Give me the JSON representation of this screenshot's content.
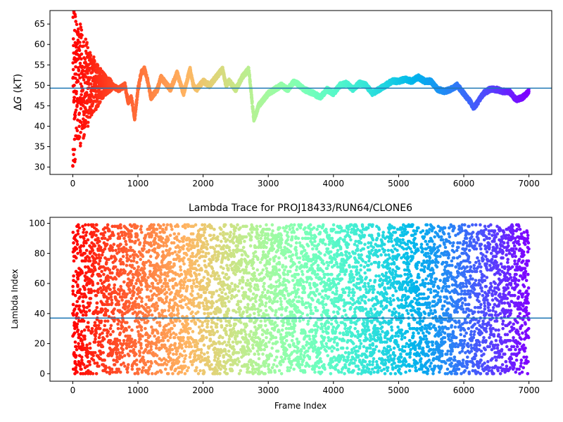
{
  "chart_data": [
    {
      "type": "scatter",
      "title": "",
      "xlabel": "",
      "ylabel_prefix": "Δ",
      "ylabel_italic": "G",
      "ylabel_suffix": " (kT)",
      "xlim": [
        -350,
        7350
      ],
      "ylim": [
        28.2,
        68.3
      ],
      "xticks": [
        0,
        1000,
        2000,
        3000,
        4000,
        5000,
        6000,
        7000
      ],
      "yticks": [
        30,
        35,
        40,
        45,
        50,
        55,
        60,
        65
      ],
      "xtick_labels": [
        "0",
        "1000",
        "2000",
        "3000",
        "4000",
        "5000",
        "6000",
        "7000"
      ],
      "ytick_labels": [
        "30",
        "35",
        "40",
        "45",
        "50",
        "55",
        "60",
        "65"
      ],
      "hline": 49.3,
      "hline_color": "#1f77b4",
      "colormap": "rainbow (red at frame 0 to violet at frame 7000)",
      "n_points": 7000,
      "trace_anchors": {
        "x": [
          0,
          60,
          100,
          150,
          200,
          250,
          300,
          350,
          400,
          450,
          500,
          600,
          700,
          800,
          850,
          900,
          950,
          1000,
          1050,
          1100,
          1150,
          1200,
          1250,
          1300,
          1350,
          1400,
          1450,
          1500,
          1600,
          1700,
          1750,
          1800,
          1850,
          1900,
          2000,
          2100,
          2200,
          2300,
          2350,
          2400,
          2500,
          2600,
          2700,
          2780,
          2850,
          3000,
          3200,
          3300,
          3400,
          3550,
          3700,
          3800,
          3900,
          4000,
          4100,
          4200,
          4300,
          4400,
          4500,
          4600,
          4700,
          4800,
          4900,
          5000,
          5100,
          5200,
          5300,
          5400,
          5500,
          5600,
          5700,
          5800,
          5900,
          6000,
          6100,
          6150,
          6200,
          6300,
          6400,
          6500,
          6600,
          6700,
          6800,
          6900,
          7000
        ],
        "y": [
          50,
          51,
          50,
          49,
          52,
          50,
          51,
          48,
          52,
          49,
          51,
          50,
          49,
          50,
          46,
          47,
          42,
          49,
          53,
          54,
          51,
          47,
          48,
          49,
          52,
          51,
          50,
          49,
          53,
          48,
          51,
          54,
          50,
          49,
          51,
          50,
          52,
          54,
          50,
          51,
          49,
          52,
          54,
          41.5,
          45,
          48,
          50,
          49,
          51,
          49,
          48,
          47,
          49,
          48,
          50,
          50.5,
          49,
          50.5,
          50,
          48,
          49,
          50,
          51,
          51,
          51.5,
          51,
          52,
          51,
          51,
          49,
          48.5,
          49,
          50,
          48,
          46,
          44.5,
          45.5,
          48,
          49,
          49,
          48.5,
          48.5,
          46.5,
          47,
          48.5
        ]
      },
      "early_spread": {
        "end_frame": 600,
        "center": 50,
        "max_deviation": 19
      }
    },
    {
      "type": "scatter",
      "title": "Lambda Trace for PROJ18433/RUN64/CLONE6",
      "xlabel": "Frame Index",
      "ylabel": "Lambda Index",
      "xlim": [
        -350,
        7350
      ],
      "ylim": [
        -5,
        104
      ],
      "xticks": [
        0,
        1000,
        2000,
        3000,
        4000,
        5000,
        6000,
        7000
      ],
      "yticks": [
        0,
        20,
        40,
        60,
        80,
        100
      ],
      "xtick_labels": [
        "0",
        "1000",
        "2000",
        "3000",
        "4000",
        "5000",
        "6000",
        "7000"
      ],
      "ytick_labels": [
        "0",
        "20",
        "40",
        "60",
        "80",
        "100"
      ],
      "hline": 37,
      "hline_color": "#1f77b4",
      "colormap": "rainbow (red at frame 0 to violet at frame 7000)",
      "n_points": 7000,
      "value_range": [
        0,
        99
      ]
    }
  ]
}
